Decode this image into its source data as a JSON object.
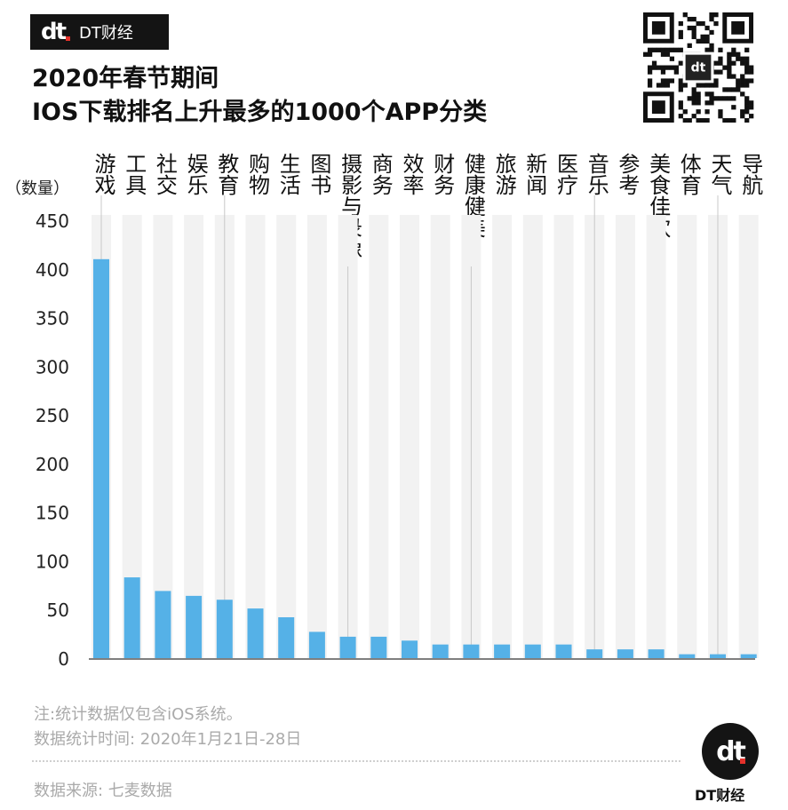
{
  "brand": {
    "mark": "dt",
    "name": "DT财经"
  },
  "title": {
    "line1": "2020年春节期间",
    "line2": "IOS下载排名上升最多的1000个APP分类"
  },
  "qr_code": {
    "center_mark": "dt"
  },
  "chart_data": {
    "type": "bar",
    "ylabel": "（数量）",
    "ylim": [
      0,
      450
    ],
    "yticks": [
      0,
      50,
      100,
      150,
      200,
      250,
      300,
      350,
      400,
      450
    ],
    "categories": [
      "游戏",
      "工具",
      "社交",
      "娱乐",
      "教育",
      "购物",
      "生活",
      "图书",
      "摄影与录像",
      "商务",
      "效率",
      "财务",
      "健康健美",
      "旅游",
      "新闻",
      "医疗",
      "音乐",
      "参考",
      "美食佳饮",
      "体育",
      "天气",
      "导航"
    ],
    "values": [
      410,
      83,
      69,
      64,
      60,
      51,
      42,
      27,
      22,
      22,
      18,
      14,
      14,
      14,
      14,
      14,
      9,
      9,
      9,
      4,
      4,
      4
    ],
    "bar_color": "#55b1e7"
  },
  "notes": {
    "line1": "注:统计数据仅包含iOS系统。",
    "line2": "数据统计时间: 2020年1月21日-28日",
    "source": "数据来源: 七麦数据"
  },
  "footer_logo": {
    "mark": "dt",
    "name": "DT财经"
  }
}
